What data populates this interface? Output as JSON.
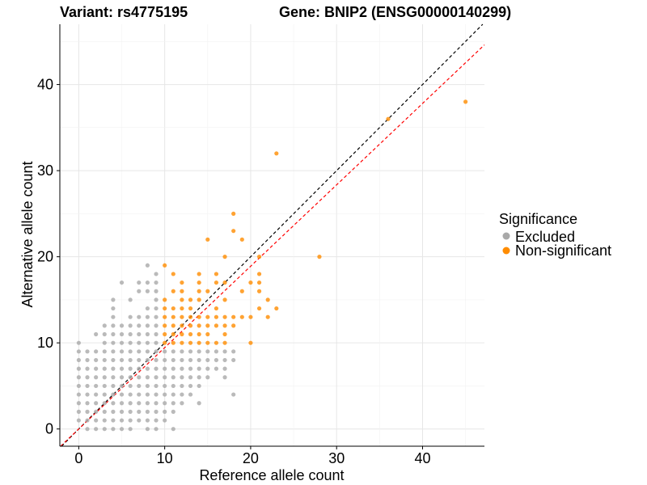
{
  "chart_data": {
    "type": "scatter",
    "title_left": "Variant: rs4775195",
    "title_right": "Gene: BNIP2 (ENSG00000140299)",
    "xlabel": "Reference allele count",
    "ylabel": "Alternative allele count",
    "xlim": [
      -2.2,
      47.2
    ],
    "ylim": [
      -2.0,
      47.0
    ],
    "xticks": [
      0,
      10,
      20,
      30,
      40
    ],
    "yticks": [
      0,
      10,
      20,
      30,
      40
    ],
    "grid": true,
    "legend": {
      "title": "Significance",
      "placement": "right",
      "entries": [
        "Excluded",
        "Non-significant"
      ]
    },
    "colors": {
      "Excluded": "#a9a9a9",
      "Non-significant": "#ff8c00",
      "identity_line": "#000000",
      "fit_line": "#ff0000"
    },
    "reference_lines": [
      {
        "name": "identity",
        "slope": 1,
        "intercept": 0
      },
      {
        "name": "fit",
        "slope": 0.945,
        "intercept": 0
      }
    ],
    "series": [
      {
        "name": "Excluded",
        "rows": {
          "0": [
            1,
            2,
            3,
            4,
            5,
            6,
            8,
            9,
            11
          ],
          "1": [
            0,
            1,
            2,
            3,
            4,
            5,
            6,
            7,
            8,
            9,
            10
          ],
          "2": [
            0,
            1,
            2,
            3,
            4,
            5,
            6,
            7,
            8,
            9,
            10,
            11
          ],
          "3": [
            0,
            1,
            2,
            3,
            4,
            5,
            6,
            7,
            8,
            9,
            10,
            11,
            12,
            14
          ],
          "4": [
            0,
            1,
            2,
            3,
            4,
            5,
            6,
            7,
            8,
            9,
            10,
            11,
            12,
            13,
            18
          ],
          "5": [
            0,
            1,
            2,
            3,
            4,
            5,
            6,
            7,
            8,
            9,
            10,
            11,
            12,
            13,
            14
          ],
          "6": [
            0,
            1,
            2,
            3,
            4,
            5,
            6,
            7,
            8,
            9,
            10,
            11,
            12,
            13,
            14,
            15,
            17
          ],
          "7": [
            0,
            1,
            2,
            3,
            4,
            5,
            6,
            7,
            8,
            9,
            10,
            11,
            12,
            13,
            14,
            15,
            16,
            17
          ],
          "8": [
            0,
            1,
            2,
            3,
            4,
            5,
            6,
            7,
            8,
            9,
            10,
            11,
            12,
            13,
            14,
            15,
            16,
            17,
            18
          ],
          "9": [
            0,
            1,
            2,
            3,
            4,
            5,
            6,
            7,
            8,
            9,
            10,
            11,
            12,
            13,
            14,
            15,
            16,
            17,
            18
          ],
          "10": [
            0,
            3,
            4,
            5,
            6,
            7,
            8,
            9
          ],
          "11": [
            2,
            3,
            4,
            5,
            6,
            7,
            8,
            9
          ],
          "12": [
            3,
            4,
            5,
            6,
            7,
            8,
            9
          ],
          "13": [
            4,
            6,
            7,
            8,
            9
          ],
          "14": [
            4,
            8,
            9
          ],
          "15": [
            4,
            6,
            9
          ],
          "16": [
            7,
            8,
            9
          ],
          "17": [
            5,
            7,
            8,
            9
          ],
          "18": [
            9
          ],
          "19": [
            8
          ]
        }
      },
      {
        "name": "Non-significant",
        "rows": {
          "10": [
            10,
            11,
            12,
            13,
            14,
            15,
            16,
            17,
            20
          ],
          "11": [
            10,
            11,
            12,
            13,
            14,
            15,
            17
          ],
          "12": [
            10,
            11,
            12,
            13,
            14,
            15,
            16,
            17,
            18
          ],
          "13": [
            10,
            11,
            12,
            13,
            14,
            15,
            16,
            17,
            18,
            19,
            20,
            22
          ],
          "14": [
            10,
            11,
            12,
            13,
            16,
            21,
            23
          ],
          "15": [
            10,
            12,
            13,
            14,
            17,
            22
          ],
          "16": [
            11,
            12,
            14,
            15,
            19,
            21
          ],
          "17": [
            12,
            14,
            16,
            17,
            20,
            21
          ],
          "18": [
            11,
            14,
            16,
            21
          ],
          "19": [
            10
          ],
          "20": [
            17,
            21,
            28
          ],
          "22": [
            15,
            19
          ],
          "23": [
            18
          ],
          "25": [
            18
          ],
          "32": [
            23
          ],
          "36": [
            36
          ],
          "38": [
            45
          ]
        }
      }
    ]
  }
}
